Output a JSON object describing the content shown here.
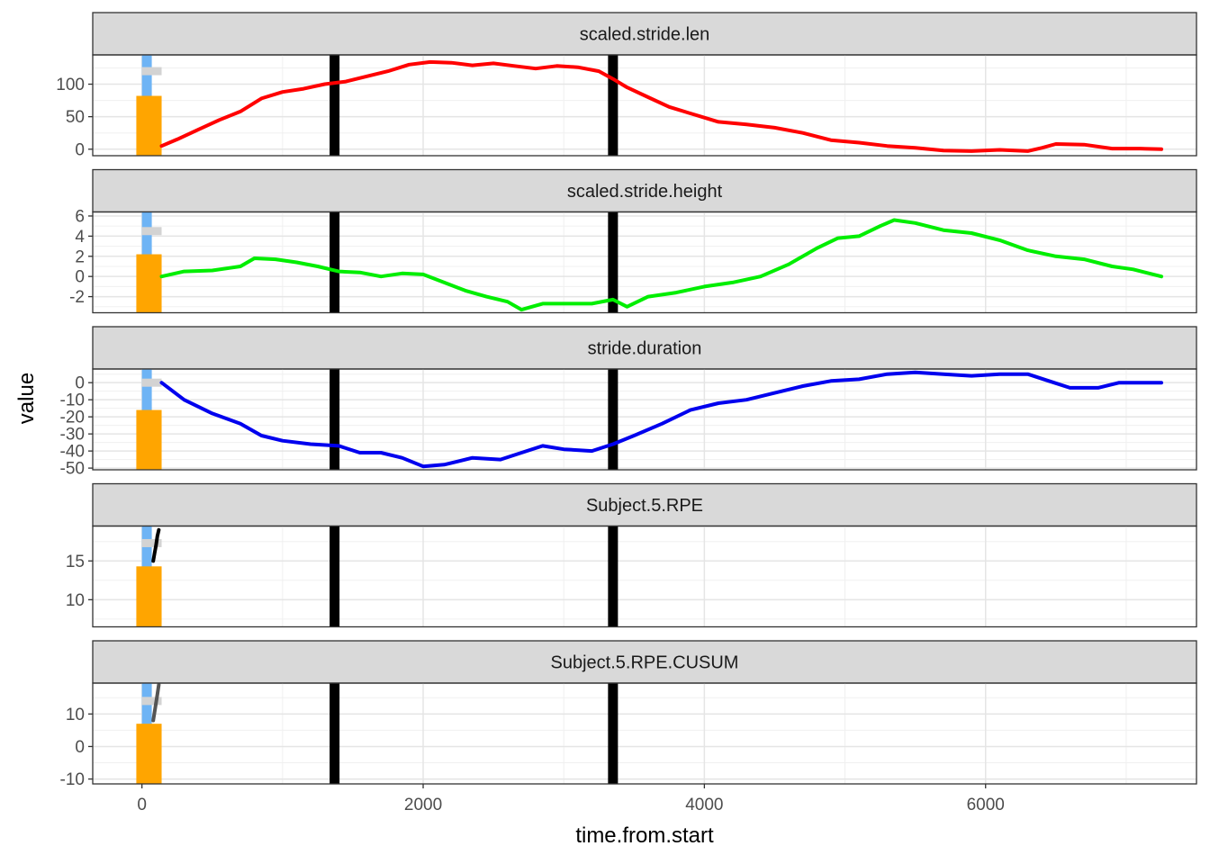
{
  "chart_data": {
    "type": "line",
    "layout": "faceted, stacked vertically, shared x axis",
    "xlabel": "time.from.start",
    "ylabel": "value",
    "xlim": [
      -350,
      7500
    ],
    "x_ticks": [
      0,
      2000,
      4000,
      6000
    ],
    "x_tick_labels": [
      "0",
      "2000",
      "4000",
      "6000"
    ],
    "grid": true,
    "vertical_markers": {
      "color": "#000000",
      "x": [
        1370,
        3350
      ]
    },
    "overlay": {
      "orange_bar": {
        "color": "#FFA500",
        "x_range": [
          -40,
          140
        ]
      },
      "blue_bar": {
        "color": "#6EB4F5",
        "x_range": [
          0,
          70
        ]
      },
      "grey_tick": {
        "color": "#D3D3D3",
        "x_range": [
          0,
          140
        ]
      }
    },
    "panels": [
      {
        "name": "scaled.stride.len",
        "color": "#FF0000",
        "ylim": [
          -10,
          145
        ],
        "y_ticks": [
          0,
          50,
          100
        ],
        "y_tick_labels": [
          "0",
          "50",
          "100"
        ],
        "orange_top": 82,
        "grey_level": 120,
        "x": [
          140,
          250,
          400,
          550,
          700,
          850,
          1000,
          1150,
          1300,
          1450,
          1600,
          1750,
          1900,
          2050,
          2200,
          2350,
          2500,
          2650,
          2800,
          2950,
          3100,
          3250,
          3350,
          3450,
          3600,
          3750,
          3900,
          4100,
          4300,
          4500,
          4700,
          4900,
          5100,
          5300,
          5500,
          5700,
          5900,
          6100,
          6300,
          6400,
          6500,
          6700,
          6900,
          7100,
          7250
        ],
        "y": [
          5,
          15,
          30,
          45,
          58,
          78,
          88,
          93,
          100,
          104,
          112,
          120,
          130,
          134,
          133,
          129,
          132,
          128,
          124,
          128,
          126,
          120,
          108,
          95,
          80,
          65,
          55,
          42,
          38,
          33,
          25,
          14,
          10,
          5,
          2,
          -2,
          -3,
          -1,
          -3,
          2,
          8,
          7,
          1,
          1,
          0
        ]
      },
      {
        "name": "scaled.stride.height",
        "color": "#00EE00",
        "ylim": [
          -3.6,
          6.4
        ],
        "y_ticks": [
          -2,
          0,
          2,
          4,
          6
        ],
        "y_tick_labels": [
          "-2",
          "0",
          "2",
          "4",
          "6"
        ],
        "orange_top": 2.2,
        "grey_level": 4.5,
        "x": [
          140,
          300,
          500,
          700,
          800,
          950,
          1100,
          1250,
          1400,
          1550,
          1700,
          1850,
          2000,
          2150,
          2300,
          2450,
          2600,
          2700,
          2850,
          3000,
          3200,
          3350,
          3450,
          3600,
          3800,
          4000,
          4200,
          4400,
          4600,
          4800,
          4950,
          5100,
          5250,
          5350,
          5500,
          5700,
          5900,
          6100,
          6300,
          6500,
          6700,
          6900,
          7050,
          7250
        ],
        "y": [
          0,
          0.5,
          0.6,
          1,
          1.8,
          1.7,
          1.4,
          1.0,
          0.5,
          0.4,
          0,
          0.3,
          0.2,
          -0.6,
          -1.4,
          -2,
          -2.5,
          -3.3,
          -2.7,
          -2.7,
          -2.7,
          -2.3,
          -3,
          -2,
          -1.6,
          -1.0,
          -0.6,
          0,
          1.2,
          2.8,
          3.8,
          4.0,
          5.0,
          5.6,
          5.3,
          4.6,
          4.3,
          3.6,
          2.6,
          2.0,
          1.7,
          1.0,
          0.7,
          0
        ]
      },
      {
        "name": "stride.duration",
        "color": "#0000EE",
        "ylim": [
          -51,
          8
        ],
        "y_ticks": [
          -50,
          -40,
          -30,
          -20,
          -10,
          0
        ],
        "y_tick_labels": [
          "-50",
          "-40",
          "-30",
          "-20",
          "-10",
          "0"
        ],
        "orange_top": -16,
        "grey_level": 0,
        "x": [
          140,
          300,
          500,
          700,
          850,
          1000,
          1200,
          1400,
          1550,
          1700,
          1850,
          2000,
          2150,
          2350,
          2550,
          2700,
          2850,
          3000,
          3200,
          3350,
          3500,
          3700,
          3900,
          4100,
          4300,
          4500,
          4700,
          4900,
          5100,
          5300,
          5500,
          5700,
          5900,
          6100,
          6300,
          6450,
          6600,
          6800,
          6950,
          7100,
          7250
        ],
        "y": [
          0,
          -10,
          -18,
          -24,
          -31,
          -34,
          -36,
          -37,
          -41,
          -41,
          -44,
          -49,
          -48,
          -44,
          -45,
          -41,
          -37,
          -39,
          -40,
          -36,
          -31,
          -24,
          -16,
          -12,
          -10,
          -6,
          -2,
          1,
          2,
          5,
          6,
          5,
          4,
          5,
          5,
          1,
          -3,
          -3,
          0,
          0,
          0
        ]
      },
      {
        "name": "Subject.5.RPE",
        "color": "#000000",
        "ylim": [
          6.5,
          19.5
        ],
        "y_ticks": [
          10,
          15
        ],
        "y_tick_labels": [
          "10",
          "15"
        ],
        "orange_top": 14.3,
        "grey_level": 17.3,
        "x": [
          80,
          90,
          100,
          110,
          120
        ],
        "y": [
          15.0,
          16.0,
          17.0,
          18.2,
          19.0
        ]
      },
      {
        "name": "Subject.5.RPE.CUSUM",
        "color": "#555555",
        "ylim": [
          -11.5,
          19.5
        ],
        "y_ticks": [
          -10,
          0,
          10
        ],
        "y_tick_labels": [
          "-10",
          "0",
          "10"
        ],
        "orange_top": 7,
        "grey_level": 14,
        "x": [
          80,
          95,
          110,
          120
        ],
        "y": [
          8,
          12,
          16,
          19
        ]
      }
    ]
  }
}
